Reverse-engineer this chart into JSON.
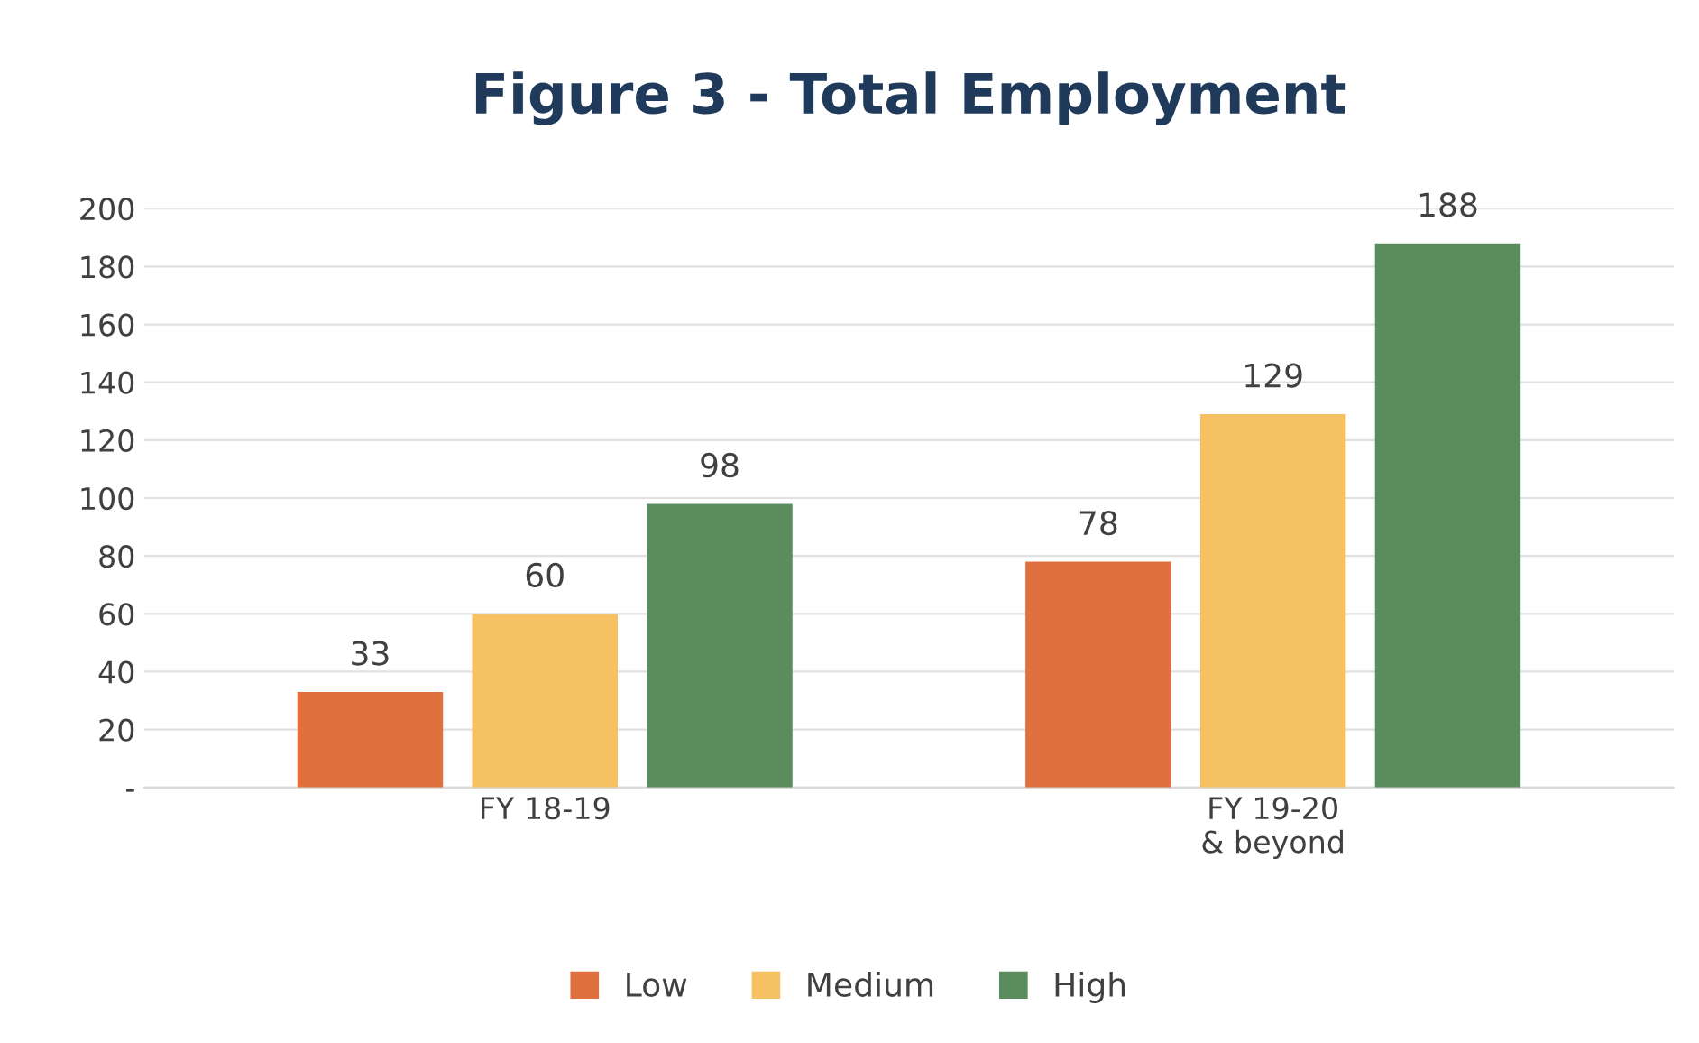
{
  "chart_data": {
    "type": "bar",
    "title": "Figure 3 - Total Employment",
    "categories": [
      "FY 18-19",
      "FY 19-20\n& beyond"
    ],
    "series": [
      {
        "name": "Low",
        "color": "#e0703e",
        "values": [
          33,
          78
        ]
      },
      {
        "name": "Medium",
        "color": "#f5c163",
        "values": [
          60,
          129
        ]
      },
      {
        "name": "High",
        "color": "#5b8c5e",
        "values": [
          98,
          188
        ]
      }
    ],
    "ylim": [
      0,
      200
    ],
    "yticks": [
      {
        "value": 0,
        "label": "-"
      },
      20,
      40,
      60,
      80,
      100,
      120,
      140,
      160,
      180,
      200
    ],
    "grid": "y",
    "legend": "bottom",
    "data_labels": true
  }
}
